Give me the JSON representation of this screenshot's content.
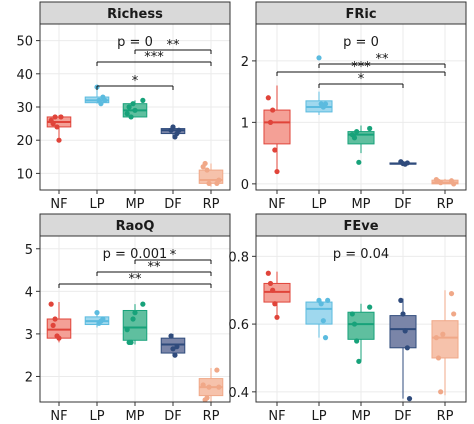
{
  "chart_data": [
    {
      "type": "boxplot",
      "title": "Richess",
      "categories": [
        "NF",
        "LP",
        "MP",
        "DF",
        "RP"
      ],
      "ylim": [
        5,
        55
      ],
      "yticks": [
        10,
        20,
        30,
        40,
        50
      ],
      "annotation": "p = 0",
      "boxes": [
        {
          "min": 20,
          "q1": 24,
          "median": 25.5,
          "q3": 27,
          "max": 27.5
        },
        {
          "min": 31,
          "q1": 31.3,
          "median": 32,
          "q3": 33,
          "max": 36
        },
        {
          "min": 27,
          "q1": 27,
          "median": 29,
          "q3": 31,
          "max": 32
        },
        {
          "min": 20.5,
          "q1": 22,
          "median": 23,
          "q3": 23.5,
          "max": 24
        },
        {
          "min": 6,
          "q1": 7,
          "median": 8,
          "q3": 11,
          "max": 13
        }
      ],
      "points": [
        [
          26,
          25,
          27,
          24,
          20,
          27
        ],
        [
          36,
          32,
          31,
          33,
          32
        ],
        [
          32,
          28,
          30,
          27,
          31,
          29
        ],
        [
          23,
          24,
          21,
          22,
          23
        ],
        [
          7,
          8,
          12,
          13,
          11,
          7
        ]
      ],
      "significance": [
        {
          "from": "LP",
          "to": "DF",
          "label": "*"
        },
        {
          "from": "LP",
          "to": "RP",
          "label": "***"
        },
        {
          "from": "MP",
          "to": "RP",
          "label": "**"
        }
      ]
    },
    {
      "type": "boxplot",
      "title": "FRic",
      "categories": [
        "NF",
        "LP",
        "MP",
        "DF",
        "RP"
      ],
      "ylim": [
        -0.1,
        2.6
      ],
      "yticks": [
        0,
        1,
        2
      ],
      "annotation": "p = 0",
      "boxes": [
        {
          "min": 0.2,
          "q1": 0.65,
          "median": 1.0,
          "q3": 1.2,
          "max": 1.6
        },
        {
          "min": 1.12,
          "q1": 1.17,
          "median": 1.25,
          "q3": 1.35,
          "max": 1.5
        },
        {
          "min": 0.5,
          "q1": 0.65,
          "median": 0.8,
          "q3": 0.85,
          "max": 0.95
        },
        {
          "min": 0.3,
          "q1": 0.32,
          "median": 0.33,
          "q3": 0.34,
          "max": 0.36
        },
        {
          "min": 0.0,
          "q1": 0.0,
          "median": 0.02,
          "q3": 0.06,
          "max": 0.08
        }
      ],
      "points": [
        [
          1.4,
          1.0,
          1.2,
          0.55,
          0.2
        ],
        [
          2.05,
          1.3,
          1.25,
          1.3
        ],
        [
          0.9,
          0.8,
          0.75,
          0.85,
          0.35
        ],
        [
          0.36,
          0.33,
          0.32,
          0.34
        ],
        [
          0.05,
          0.0,
          0.07,
          0.04,
          0.02
        ]
      ],
      "significance": [
        {
          "from": "LP",
          "to": "DF",
          "label": "*"
        },
        {
          "from": "LP",
          "to": "RP",
          "label": "**"
        },
        {
          "from": "NF",
          "to": "RP",
          "label": "***"
        }
      ]
    },
    {
      "type": "boxplot",
      "title": "RaoQ",
      "categories": [
        "NF",
        "LP",
        "MP",
        "DF",
        "RP"
      ],
      "ylim": [
        1.4,
        5.3
      ],
      "yticks": [
        2,
        3,
        4,
        5
      ],
      "annotation": "p = 0.001",
      "boxes": [
        {
          "min": 2.8,
          "q1": 2.9,
          "median": 3.1,
          "q3": 3.35,
          "max": 3.75
        },
        {
          "min": 3.15,
          "q1": 3.22,
          "median": 3.3,
          "q3": 3.4,
          "max": 3.5
        },
        {
          "min": 2.75,
          "q1": 2.85,
          "median": 3.15,
          "q3": 3.55,
          "max": 3.7
        },
        {
          "min": 2.5,
          "q1": 2.55,
          "median": 2.75,
          "q3": 2.9,
          "max": 3.0
        },
        {
          "min": 1.4,
          "q1": 1.55,
          "median": 1.75,
          "q3": 1.95,
          "max": 2.2
        }
      ],
      "points": [
        [
          3.7,
          3.2,
          3.35,
          2.95,
          2.9
        ],
        [
          3.5,
          3.25,
          3.3,
          3.35
        ],
        [
          3.7,
          3.1,
          2.8,
          2.8,
          3.35,
          3.5
        ],
        [
          2.95,
          2.65,
          2.5,
          2.7
        ],
        [
          2.15,
          1.75,
          1.8,
          1.45,
          1.5,
          1.75
        ]
      ],
      "significance": [
        {
          "from": "NF",
          "to": "RP",
          "label": "**"
        },
        {
          "from": "LP",
          "to": "RP",
          "label": "**"
        },
        {
          "from": "MP",
          "to": "RP",
          "label": "*"
        }
      ]
    },
    {
      "type": "boxplot",
      "title": "FEve",
      "categories": [
        "NF",
        "LP",
        "MP",
        "DF",
        "RP"
      ],
      "ylim": [
        0.37,
        0.86
      ],
      "yticks": [
        0.4,
        0.6,
        0.8
      ],
      "annotation": "p = 0.04",
      "boxes": [
        {
          "min": 0.615,
          "q1": 0.665,
          "median": 0.695,
          "q3": 0.72,
          "max": 0.755
        },
        {
          "min": 0.56,
          "q1": 0.6,
          "median": 0.645,
          "q3": 0.665,
          "max": 0.67
        },
        {
          "min": 0.49,
          "q1": 0.555,
          "median": 0.6,
          "q3": 0.635,
          "max": 0.66
        },
        {
          "min": 0.38,
          "q1": 0.53,
          "median": 0.585,
          "q3": 0.625,
          "max": 0.675
        },
        {
          "min": 0.39,
          "q1": 0.5,
          "median": 0.56,
          "q3": 0.61,
          "max": 0.7
        }
      ],
      "points": [
        [
          0.75,
          0.72,
          0.7,
          0.66,
          0.62
        ],
        [
          0.67,
          0.66,
          0.61,
          0.56,
          0.67
        ],
        [
          0.65,
          0.63,
          0.6,
          0.55,
          0.49
        ],
        [
          0.67,
          0.63,
          0.58,
          0.53,
          0.38
        ],
        [
          0.69,
          0.63,
          0.56,
          0.5,
          0.4,
          0.57
        ]
      ],
      "significance": []
    }
  ],
  "colors": {
    "fill": [
      "#f4a096",
      "#9fd8ee",
      "#5fbf9f",
      "#7a85a8",
      "#f6c2ab"
    ],
    "stroke": [
      "#e0443a",
      "#5bbbdf",
      "#17a27a",
      "#2f4b7c",
      "#f0a888"
    ],
    "strip_bg": "#d9d9d9",
    "panel_border": "#333333",
    "grid": "#ebebeb"
  }
}
